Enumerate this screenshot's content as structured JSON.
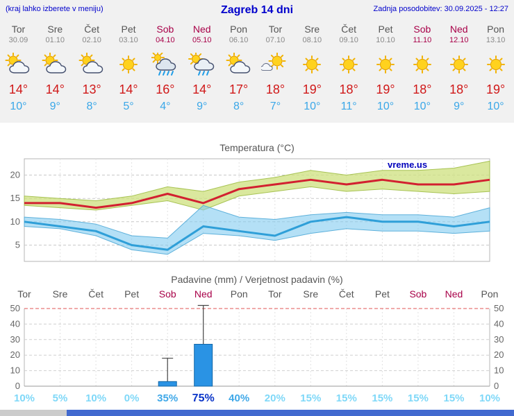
{
  "header": {
    "left_hint": "(kraj lahko izberete v meniju)",
    "title": "Zagreb 14 dni",
    "last_update": "Zadnja posodobitev: 30.09.2025 - 12:27"
  },
  "days": [
    {
      "name": "Tor",
      "date": "30.09",
      "weekend": false,
      "icon": "partly",
      "tmax": 14,
      "tmin": 10
    },
    {
      "name": "Sre",
      "date": "01.10",
      "weekend": false,
      "icon": "partly",
      "tmax": 14,
      "tmin": 9
    },
    {
      "name": "Čet",
      "date": "02.10",
      "weekend": false,
      "icon": "partly",
      "tmax": 13,
      "tmin": 8
    },
    {
      "name": "Pet",
      "date": "03.10",
      "weekend": false,
      "icon": "sunny",
      "tmax": 14,
      "tmin": 5
    },
    {
      "name": "Sob",
      "date": "04.10",
      "weekend": true,
      "icon": "rain",
      "tmax": 16,
      "tmin": 4
    },
    {
      "name": "Ned",
      "date": "05.10",
      "weekend": true,
      "icon": "rain-sun",
      "tmax": 14,
      "tmin": 9
    },
    {
      "name": "Pon",
      "date": "06.10",
      "weekend": false,
      "icon": "partly",
      "tmax": 17,
      "tmin": 8
    },
    {
      "name": "Tor",
      "date": "07.10",
      "weekend": false,
      "icon": "mostly-sunny",
      "tmax": 18,
      "tmin": 7
    },
    {
      "name": "Sre",
      "date": "08.10",
      "weekend": false,
      "icon": "sunny",
      "tmax": 19,
      "tmin": 10
    },
    {
      "name": "Čet",
      "date": "09.10",
      "weekend": false,
      "icon": "sunny",
      "tmax": 18,
      "tmin": 11
    },
    {
      "name": "Pet",
      "date": "10.10",
      "weekend": false,
      "icon": "sunny",
      "tmax": 19,
      "tmin": 10
    },
    {
      "name": "Sob",
      "date": "11.10",
      "weekend": true,
      "icon": "sunny",
      "tmax": 18,
      "tmin": 10
    },
    {
      "name": "Ned",
      "date": "12.10",
      "weekend": true,
      "icon": "sunny",
      "tmax": 18,
      "tmin": 9
    },
    {
      "name": "Pon",
      "date": "13.10",
      "weekend": false,
      "icon": "sunny",
      "tmax": 19,
      "tmin": 10
    }
  ],
  "chart_data": [
    {
      "type": "area",
      "title": "Temperatura (°C)",
      "watermark": "vreme.us",
      "x_labels": [
        "Tor",
        "Sre",
        "Čet",
        "Pet",
        "Sob",
        "Ned",
        "Pon",
        "Tor",
        "Sre",
        "Čet",
        "Pet",
        "Sob",
        "Ned",
        "Pon"
      ],
      "ylim": [
        1.5,
        23.5
      ],
      "yticks": [
        5,
        10,
        15,
        20
      ],
      "legend_position": "none",
      "grid": true,
      "series": [
        {
          "name": "max_temp",
          "color": "#d22030",
          "values": [
            14,
            14,
            13,
            14,
            16,
            14,
            17,
            18,
            19,
            18,
            19,
            18,
            18,
            19
          ]
        },
        {
          "name": "max_band_upper",
          "color": "#cde07d",
          "values": [
            15.5,
            15,
            14.5,
            15.5,
            17.5,
            16.5,
            18.5,
            19.5,
            21,
            20,
            21,
            21,
            21.5,
            23
          ]
        },
        {
          "name": "max_band_lower",
          "color": "#cde07d",
          "values": [
            13.5,
            13,
            12.5,
            13.5,
            14.5,
            12.5,
            15.5,
            16.5,
            17.5,
            16.5,
            17,
            16.5,
            16,
            16.5
          ]
        },
        {
          "name": "min_temp",
          "color": "#2f9fd8",
          "values": [
            10,
            9,
            8,
            5,
            4,
            9,
            8,
            7,
            10,
            11,
            10,
            10,
            9,
            10
          ]
        },
        {
          "name": "min_band_upper",
          "color": "#82cbf0",
          "values": [
            11,
            10.5,
            9.5,
            7,
            6.5,
            13.5,
            11,
            10.5,
            11.5,
            12,
            11.5,
            11.5,
            11,
            13
          ]
        },
        {
          "name": "min_band_lower",
          "color": "#82cbf0",
          "values": [
            9,
            8.5,
            7,
            4,
            3,
            7.5,
            7,
            6,
            7.5,
            8.5,
            8,
            8,
            7.5,
            8
          ]
        }
      ]
    },
    {
      "type": "bar",
      "title": "Padavine (mm) / Verjetnost padavin (%)",
      "categories": [
        "Tor",
        "Sre",
        "Čet",
        "Pet",
        "Sob",
        "Ned",
        "Pon",
        "Tor",
        "Sre",
        "Čet",
        "Pet",
        "Sob",
        "Ned",
        "Pon"
      ],
      "values": [
        0,
        0,
        0,
        0,
        3,
        27,
        0,
        0,
        0,
        0,
        0,
        0,
        0,
        0
      ],
      "whisker_max": [
        0,
        0,
        0,
        0,
        18,
        52,
        0,
        0,
        0,
        0,
        0,
        0,
        0,
        0
      ],
      "probabilities": [
        10,
        5,
        10,
        0,
        35,
        75,
        40,
        20,
        15,
        15,
        15,
        15,
        15,
        10
      ],
      "ylim": [
        0,
        52
      ],
      "yticks": [
        0,
        10,
        20,
        30,
        40,
        50
      ],
      "grid": true
    }
  ],
  "colors": {
    "accent_blue": "#0000cc",
    "weekend_red": "#a80048",
    "tmax_red": "#d01818",
    "tmin_blue": "#3aa7e8",
    "bar_blue": "#2a93e4",
    "prob_low": "#7fd8f8",
    "prob_mid": "#3fa8e8",
    "prob_high": "#0a35c8",
    "footer_blue": "#4169cf",
    "footer_gray": "#cccccc"
  }
}
